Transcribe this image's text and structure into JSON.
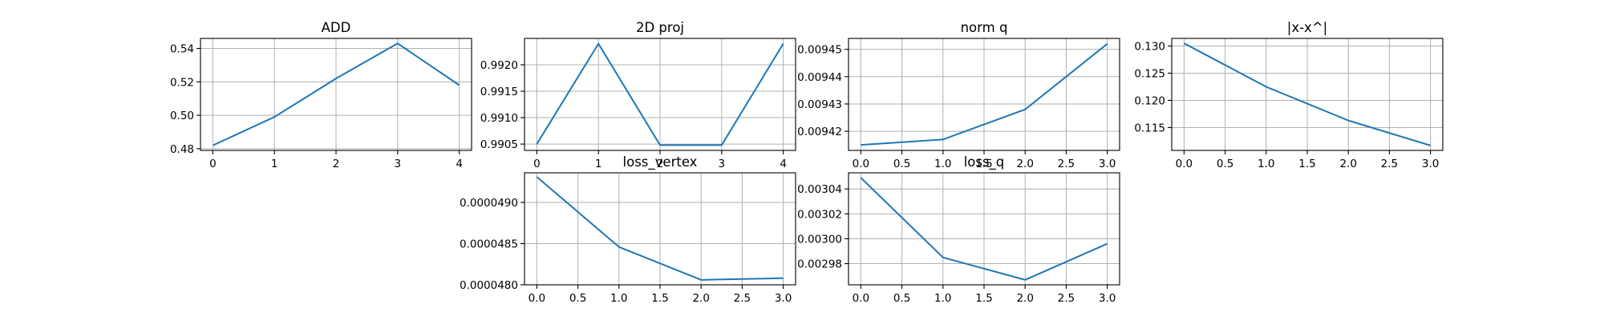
{
  "figure": {
    "line_color": "#1f77b4",
    "grid_color": "#b0b0b0"
  },
  "chart_data": [
    {
      "type": "line",
      "title": "ADD",
      "grid": true,
      "x": [
        0,
        1,
        2,
        3,
        4
      ],
      "series": [
        {
          "values": [
            0.482,
            0.499,
            0.522,
            0.543,
            0.518
          ]
        }
      ],
      "xlim": [
        -0.2,
        4.2
      ],
      "ylim": [
        0.479,
        0.546
      ],
      "xticks": [
        0,
        1,
        2,
        3,
        4
      ],
      "xtick_labels": [
        "0",
        "1",
        "2",
        "3",
        "4"
      ],
      "yticks": [
        0.48,
        0.5,
        0.52,
        0.54
      ],
      "ytick_labels": [
        "0.48",
        "0.50",
        "0.52",
        "0.54"
      ]
    },
    {
      "type": "line",
      "title": "2D proj",
      "grid": true,
      "x": [
        0,
        1,
        2,
        3,
        4
      ],
      "series": [
        {
          "values": [
            0.9905,
            0.9924,
            0.99048,
            0.99048,
            0.9924
          ]
        }
      ],
      "xlim": [
        -0.2,
        4.2
      ],
      "ylim": [
        0.99038,
        0.9925
      ],
      "xticks": [
        0,
        1,
        2,
        3,
        4
      ],
      "xtick_labels": [
        "0",
        "1",
        "2",
        "3",
        "4"
      ],
      "yticks": [
        0.9905,
        0.991,
        0.9915,
        0.992
      ],
      "ytick_labels": [
        "0.9905",
        "0.9910",
        "0.9915",
        "0.9920"
      ]
    },
    {
      "type": "line",
      "title": "norm q",
      "grid": true,
      "x": [
        0.0,
        1.0,
        2.0,
        3.0
      ],
      "series": [
        {
          "values": [
            0.009415,
            0.009417,
            0.009428,
            0.009452
          ]
        }
      ],
      "xlim": [
        -0.15,
        3.15
      ],
      "ylim": [
        0.009413,
        0.009454
      ],
      "xticks": [
        0.0,
        0.5,
        1.0,
        1.5,
        2.0,
        2.5,
        3.0
      ],
      "xtick_labels": [
        "0.0",
        "0.5",
        "1.0",
        "1.5",
        "2.0",
        "2.5",
        "3.0"
      ],
      "yticks": [
        0.00942,
        0.00943,
        0.00944,
        0.00945
      ],
      "ytick_labels": [
        "0.00942",
        "0.00943",
        "0.00944",
        "0.00945"
      ]
    },
    {
      "type": "line",
      "title": "|x-x^|",
      "grid": true,
      "x": [
        0.0,
        1.0,
        2.0,
        3.0
      ],
      "series": [
        {
          "values": [
            0.1305,
            0.1225,
            0.1163,
            0.1117
          ]
        }
      ],
      "xlim": [
        -0.15,
        3.15
      ],
      "ylim": [
        0.1108,
        0.1314
      ],
      "xticks": [
        0.0,
        0.5,
        1.0,
        1.5,
        2.0,
        2.5,
        3.0
      ],
      "xtick_labels": [
        "0.0",
        "0.5",
        "1.0",
        "1.5",
        "2.0",
        "2.5",
        "3.0"
      ],
      "yticks": [
        0.115,
        0.12,
        0.125,
        0.13
      ],
      "ytick_labels": [
        "0.115",
        "0.120",
        "0.125",
        "0.130"
      ]
    },
    {
      "type": "line",
      "title": "loss_vertex",
      "grid": true,
      "x": [
        0.0,
        1.0,
        2.0,
        3.0
      ],
      "series": [
        {
          "values": [
            4.931e-05,
            4.846e-05,
            4.806e-05,
            4.808e-05
          ]
        }
      ],
      "xlim": [
        -0.15,
        3.15
      ],
      "ylim": [
        4.8e-05,
        4.936e-05
      ],
      "xticks": [
        0.0,
        0.5,
        1.0,
        1.5,
        2.0,
        2.5,
        3.0
      ],
      "xtick_labels": [
        "0.0",
        "0.5",
        "1.0",
        "1.5",
        "2.0",
        "2.5",
        "3.0"
      ],
      "yticks": [
        4.8e-05,
        4.85e-05,
        4.9e-05
      ],
      "ytick_labels": [
        "0.0000480",
        "0.0000485",
        "0.0000490"
      ]
    },
    {
      "type": "line",
      "title": "loss_q",
      "grid": true,
      "x": [
        0.0,
        1.0,
        2.0,
        3.0
      ],
      "series": [
        {
          "values": [
            0.003049,
            0.002985,
            0.002967,
            0.002996
          ]
        }
      ],
      "xlim": [
        -0.15,
        3.15
      ],
      "ylim": [
        0.002963,
        0.003053
      ],
      "xticks": [
        0.0,
        0.5,
        1.0,
        1.5,
        2.0,
        2.5,
        3.0
      ],
      "xtick_labels": [
        "0.0",
        "0.5",
        "1.0",
        "1.5",
        "2.0",
        "2.5",
        "3.0"
      ],
      "yticks": [
        0.00298,
        0.003,
        0.00302,
        0.00304
      ],
      "ytick_labels": [
        "0.00298",
        "0.00300",
        "0.00302",
        "0.00304"
      ]
    }
  ]
}
